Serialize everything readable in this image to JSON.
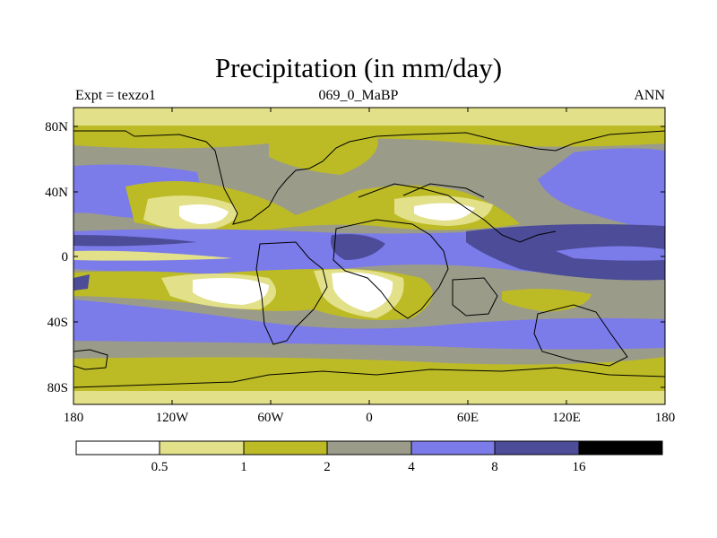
{
  "title": "Precipitation (in mm/day)",
  "subtitle_left": "Expt = texzo1",
  "subtitle_center": "069_0_MaBP",
  "subtitle_right": "ANN",
  "lat_labels": [
    "80N",
    "40N",
    "0",
    "40S",
    "80S"
  ],
  "lon_labels": [
    "180",
    "120W",
    "60W",
    "0",
    "60E",
    "120E",
    "180"
  ],
  "colorbar": {
    "colors": [
      "#ffffff",
      "#e3e08a",
      "#bdbb25",
      "#9b9b8a",
      "#7b7bea",
      "#4c4c98",
      "#000000"
    ],
    "labels": [
      "0.5",
      "1",
      "2",
      "4",
      "8",
      "16"
    ]
  },
  "chart_data": {
    "type": "heatmap",
    "title": "Precipitation (in mm/day)",
    "variable": "precipitation",
    "units": "mm/day",
    "period": "ANN",
    "experiment": "texzo1",
    "age": "069_0_MaBP",
    "contour_levels": [
      0.5,
      1,
      2,
      4,
      8,
      16
    ],
    "x_range": [
      -180,
      180
    ],
    "y_range": [
      -90,
      90
    ],
    "x_ticks": [
      -180,
      -120,
      -60,
      0,
      60,
      120,
      180
    ],
    "y_ticks": [
      80,
      40,
      0,
      -40,
      -80
    ]
  }
}
